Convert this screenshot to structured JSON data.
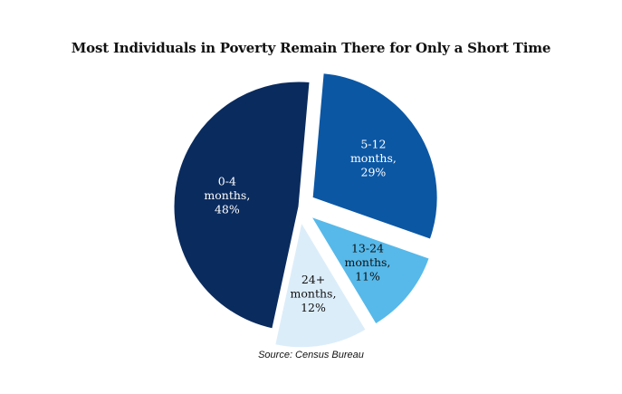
{
  "chart_data": {
    "type": "pie",
    "title": "Most Individuals in Poverty Remain There for Only a Short Time",
    "source": "Source: Census Bureau",
    "slices": [
      {
        "label_lines": [
          "5-12",
          "months,",
          "29%"
        ],
        "value": 29,
        "color": "#0b57a4",
        "text_color": "#ffffff",
        "exploded": true
      },
      {
        "label_lines": [
          "13-24",
          "months,",
          "11%"
        ],
        "value": 11,
        "color": "#56b9ea",
        "text_color": "#111111",
        "exploded": true
      },
      {
        "label_lines": [
          "24+",
          "months,",
          "12%"
        ],
        "value": 12,
        "color": "#dcedfa",
        "text_color": "#111111",
        "exploded": true
      },
      {
        "label_lines": [
          "0-4",
          "months,",
          "48%"
        ],
        "value": 48,
        "color": "#0a2b5e",
        "text_color": "#ffffff",
        "exploded": false
      }
    ]
  }
}
